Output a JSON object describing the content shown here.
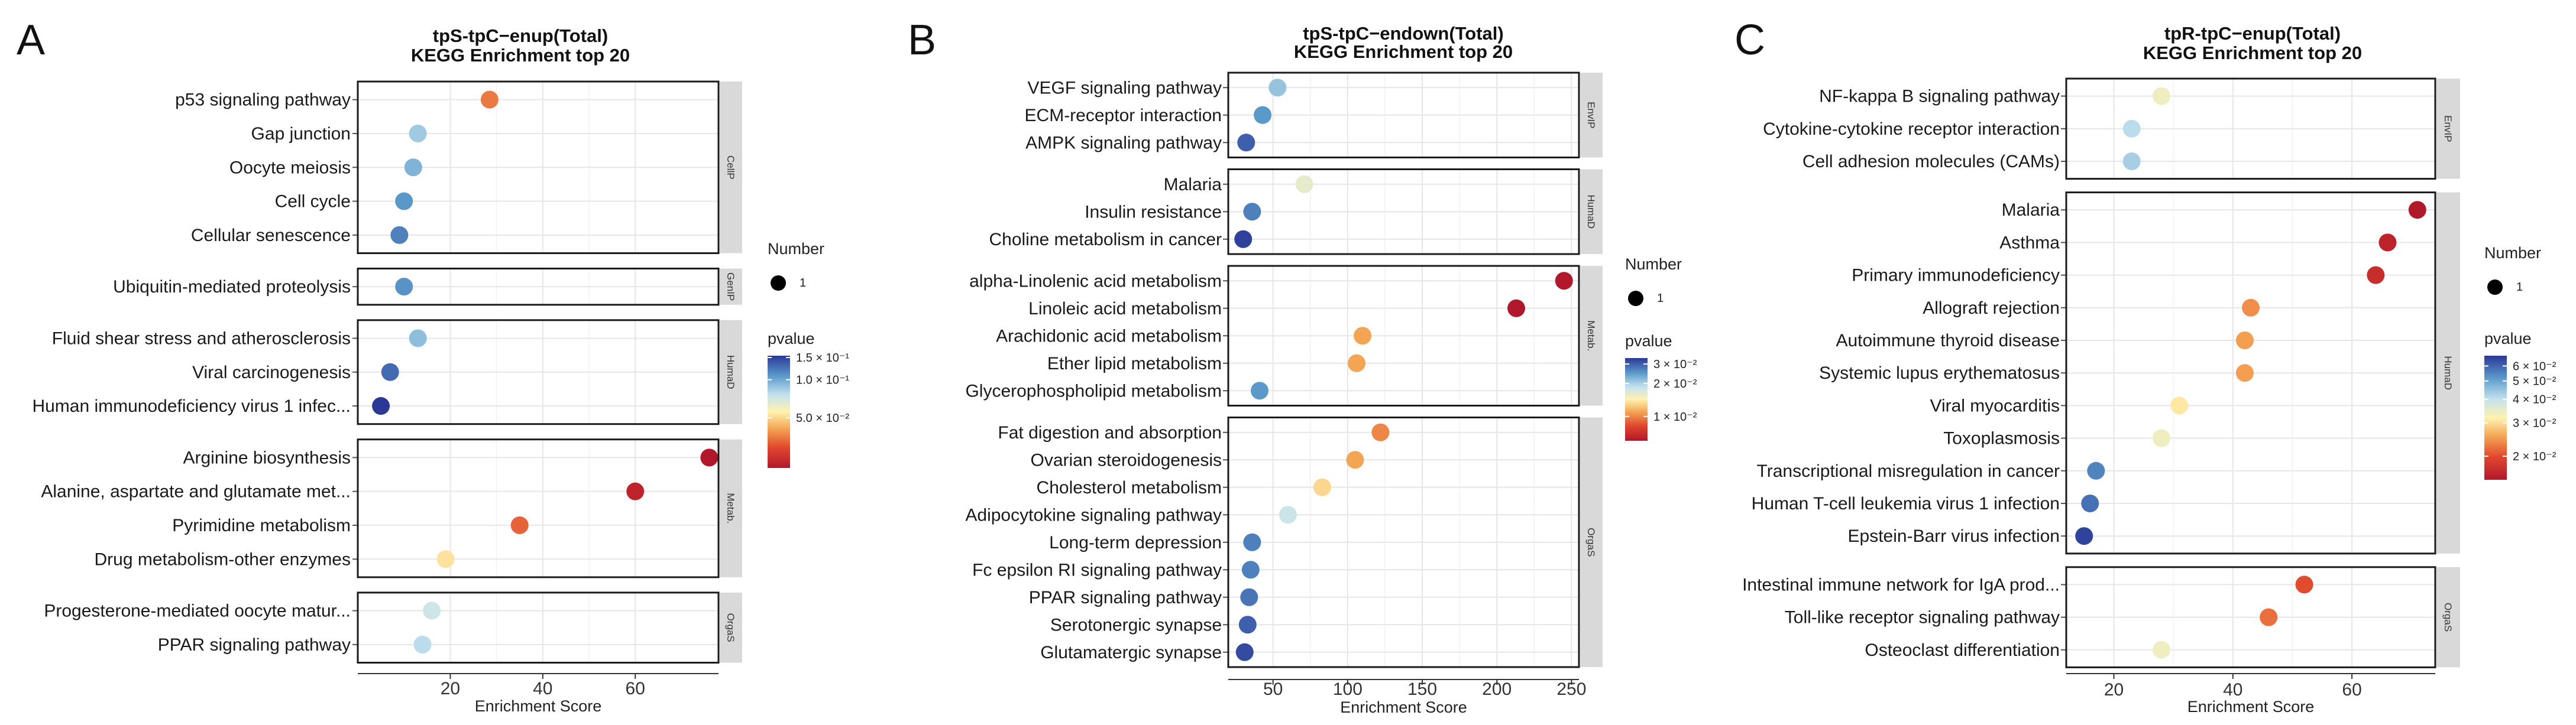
{
  "chart_data": [
    {
      "type": "scatter",
      "panel_label": "A",
      "title": [
        "tpS-tpC−enup(Total)",
        "KEGG Enrichment top 20"
      ],
      "xlabel": "Enrichment Score",
      "xlim": [
        0,
        78
      ],
      "xticks": [
        20,
        40,
        60
      ],
      "size_legend": {
        "title": "Number",
        "value": "1"
      },
      "color_legend": {
        "title": "pvalue",
        "min": 0.02,
        "max": 0.155,
        "ticks": [
          {
            "v": 0.15,
            "label": "1.5 × 10⁻¹"
          },
          {
            "v": 0.1,
            "label": "1.0 × 10⁻¹"
          },
          {
            "v": 0.05,
            "label": "5.0 × 10⁻²"
          }
        ]
      },
      "groups": [
        {
          "name": "CellP",
          "terms": [
            {
              "term": "p53 signaling pathway",
              "x": 28.5,
              "p": 0.035
            },
            {
              "term": "Gap junction",
              "x": 13,
              "p": 0.085
            },
            {
              "term": "Oocyte meiosis",
              "x": 12,
              "p": 0.095
            },
            {
              "term": "Cell cycle",
              "x": 10,
              "p": 0.108
            },
            {
              "term": "Cellular senescence",
              "x": 9,
              "p": 0.118
            }
          ]
        },
        {
          "name": "GenIP",
          "terms": [
            {
              "term": "Ubiquitin-mediated proteolysis",
              "x": 10,
              "p": 0.11
            }
          ]
        },
        {
          "name": "HumaD",
          "terms": [
            {
              "term": "Fluid shear stress and atherosclerosis",
              "x": 13,
              "p": 0.09
            },
            {
              "term": "Viral carcinogenesis",
              "x": 7,
              "p": 0.128
            },
            {
              "term": "Human immunodeficiency virus 1 infec...",
              "x": 5,
              "p": 0.155
            }
          ]
        },
        {
          "name": "Metab.",
          "terms": [
            {
              "term": "Arginine biosynthesis",
              "x": 76,
              "p": 0.02
            },
            {
              "term": "Alanine, aspartate and glutamate met...",
              "x": 60,
              "p": 0.022
            },
            {
              "term": "Pyrimidine metabolism",
              "x": 35,
              "p": 0.032
            },
            {
              "term": "Drug metabolism-other enzymes",
              "x": 19,
              "p": 0.052
            }
          ]
        },
        {
          "name": "OrgaS",
          "terms": [
            {
              "term": "Progesterone-mediated oocyte matur...",
              "x": 16,
              "p": 0.072
            },
            {
              "term": "PPAR signaling pathway",
              "x": 14,
              "p": 0.078
            }
          ]
        }
      ]
    },
    {
      "type": "scatter",
      "panel_label": "B",
      "title": [
        "tpS-tpC−endown(Total)",
        "KEGG Enrichment top 20"
      ],
      "xlabel": "Enrichment Score",
      "xlim": [
        20,
        255
      ],
      "xticks": [
        50,
        100,
        150,
        200,
        250
      ],
      "size_legend": {
        "title": "Number",
        "value": "1"
      },
      "color_legend": {
        "title": "pvalue",
        "min": 0.006,
        "max": 0.034,
        "ticks": [
          {
            "v": 0.03,
            "label": "3 × 10⁻²"
          },
          {
            "v": 0.02,
            "label": "2 × 10⁻²"
          },
          {
            "v": 0.01,
            "label": "1 × 10⁻²"
          }
        ]
      },
      "groups": [
        {
          "name": "EnvIP",
          "terms": [
            {
              "term": "VEGF signaling pathway",
              "x": 53,
              "p": 0.021
            },
            {
              "term": "ECM-receptor interaction",
              "x": 43,
              "p": 0.025
            },
            {
              "term": "AMPK signaling pathway",
              "x": 32,
              "p": 0.03
            }
          ]
        },
        {
          "name": "HumaD",
          "terms": [
            {
              "term": "Malaria",
              "x": 71,
              "p": 0.016
            },
            {
              "term": "Insulin resistance",
              "x": 36,
              "p": 0.027
            },
            {
              "term": "Choline metabolism in cancer",
              "x": 30,
              "p": 0.033
            }
          ]
        },
        {
          "name": "Metab.",
          "terms": [
            {
              "term": "alpha-Linolenic acid metabolism",
              "x": 245,
              "p": 0.006
            },
            {
              "term": "Linoleic acid metabolism",
              "x": 213,
              "p": 0.006
            },
            {
              "term": "Arachidonic acid metabolism",
              "x": 110,
              "p": 0.011
            },
            {
              "term": "Ether lipid metabolism",
              "x": 106,
              "p": 0.011
            },
            {
              "term": "Glycerophospholipid metabolism",
              "x": 41,
              "p": 0.025
            }
          ]
        },
        {
          "name": "OrgaS",
          "terms": [
            {
              "term": "Fat digestion and absorption",
              "x": 122,
              "p": 0.01
            },
            {
              "term": "Ovarian steroidogenesis",
              "x": 105,
              "p": 0.011
            },
            {
              "term": "Cholesterol metabolism",
              "x": 83,
              "p": 0.013
            },
            {
              "term": "Adipocytokine signaling pathway",
              "x": 60,
              "p": 0.018
            },
            {
              "term": "Long-term depression",
              "x": 36,
              "p": 0.027
            },
            {
              "term": "Fc epsilon RI signaling pathway",
              "x": 35,
              "p": 0.027
            },
            {
              "term": "PPAR signaling pathway",
              "x": 34,
              "p": 0.028
            },
            {
              "term": "Serotonergic synapse",
              "x": 33,
              "p": 0.03
            },
            {
              "term": "Glutamatergic synapse",
              "x": 31,
              "p": 0.032
            }
          ]
        }
      ]
    },
    {
      "type": "scatter",
      "panel_label": "C",
      "title": [
        "tpR-tpC−enup(Total)",
        "KEGG Enrichment top 20"
      ],
      "xlabel": "Enrichment Score",
      "xlim": [
        12,
        74
      ],
      "xticks": [
        20,
        40,
        60
      ],
      "size_legend": {
        "title": "Number",
        "value": "1"
      },
      "color_legend": {
        "title": "pvalue",
        "min": 0.015,
        "max": 0.068,
        "ticks": [
          {
            "v": 0.06,
            "label": "6 × 10⁻²"
          },
          {
            "v": 0.05,
            "label": "5 × 10⁻²"
          },
          {
            "v": 0.04,
            "label": "4 × 10⁻²"
          },
          {
            "v": 0.03,
            "label": "3 × 10⁻²"
          },
          {
            "v": 0.02,
            "label": "2 × 10⁻²"
          }
        ]
      },
      "groups": [
        {
          "name": "EnvIP",
          "terms": [
            {
              "term": "NF-kappa B signaling pathway",
              "x": 28,
              "p": 0.034
            },
            {
              "term": "Cytokine-cytokine receptor interaction",
              "x": 23,
              "p": 0.041
            },
            {
              "term": "Cell adhesion molecules (CAMs)",
              "x": 23,
              "p": 0.043
            }
          ]
        },
        {
          "name": "HumaD",
          "terms": [
            {
              "term": "Malaria",
              "x": 71,
              "p": 0.015
            },
            {
              "term": "Asthma",
              "x": 66,
              "p": 0.016
            },
            {
              "term": "Primary immunodeficiency",
              "x": 64,
              "p": 0.017
            },
            {
              "term": "Allograft rejection",
              "x": 43,
              "p": 0.024
            },
            {
              "term": "Autoimmune thyroid disease",
              "x": 42,
              "p": 0.025
            },
            {
              "term": "Systemic lupus erythematosus",
              "x": 42,
              "p": 0.025
            },
            {
              "term": "Viral myocarditis",
              "x": 31,
              "p": 0.031
            },
            {
              "term": "Toxoplasmosis",
              "x": 28,
              "p": 0.034
            },
            {
              "term": "Transcriptional misregulation in cancer",
              "x": 17,
              "p": 0.055
            },
            {
              "term": "Human T-cell leukemia virus 1 infection",
              "x": 16,
              "p": 0.058
            },
            {
              "term": "Epstein-Barr virus infection",
              "x": 15,
              "p": 0.066
            }
          ]
        },
        {
          "name": "OrgaS",
          "terms": [
            {
              "term": "Intestinal immune network for IgA prod...",
              "x": 52,
              "p": 0.02
            },
            {
              "term": "Toll-like receptor signaling pathway",
              "x": 46,
              "p": 0.022
            },
            {
              "term": "Osteoclast differentiation",
              "x": 28,
              "p": 0.034
            }
          ]
        }
      ]
    }
  ]
}
